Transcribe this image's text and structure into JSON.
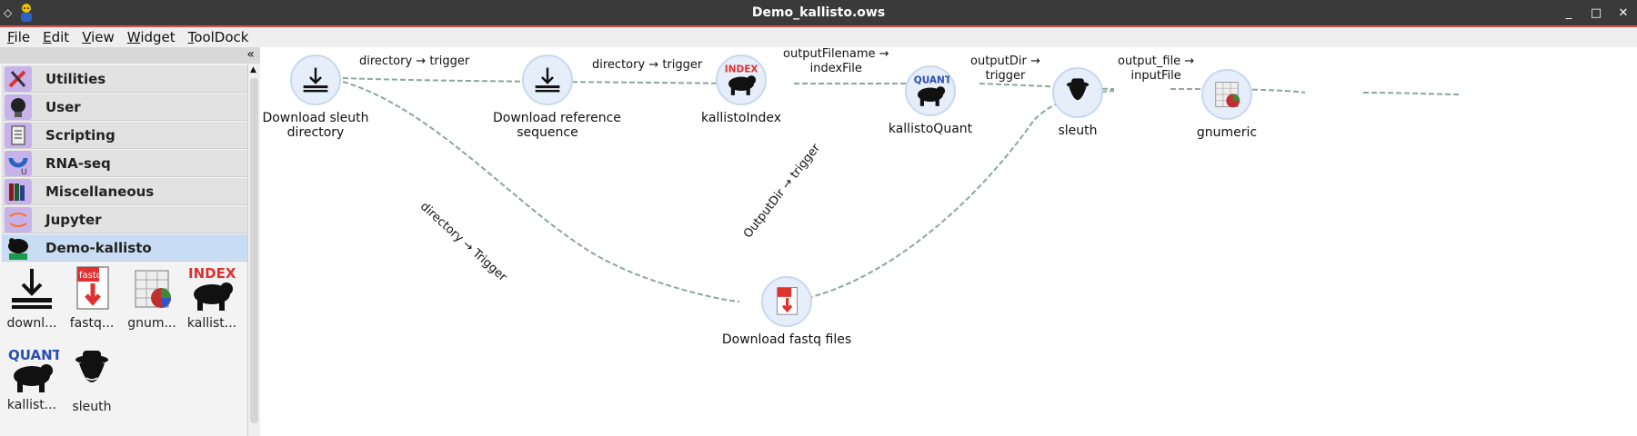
{
  "window": {
    "title": "Demo_kallisto.ows",
    "buttons": [
      "_",
      "□",
      "✕"
    ]
  },
  "menu": [
    "File",
    "Edit",
    "View",
    "Widget",
    "ToolDock"
  ],
  "dock": {
    "collapse_glyph": "«",
    "categories": [
      {
        "label": "Utilities",
        "icon": "wrench-screwdriver-icon",
        "color": "#b89be0"
      },
      {
        "label": "User",
        "icon": "lightbulb-icon",
        "color": "#b89be0"
      },
      {
        "label": "Scripting",
        "icon": "script-icon",
        "color": "#b89be0"
      },
      {
        "label": "RNA-seq",
        "icon": "magnet-icon",
        "color": "#b89be0"
      },
      {
        "label": "Miscellaneous",
        "icon": "books-icon",
        "color": "#b89be0"
      },
      {
        "label": "Jupyter",
        "icon": "jupyter-icon",
        "color": "#b89be0"
      },
      {
        "label": "Demo-kallisto",
        "icon": "bear-demo-icon",
        "color": "#b89be0"
      }
    ],
    "widgets": [
      {
        "label": "downl...",
        "icon": "download-icon"
      },
      {
        "label": "fastq...",
        "icon": "fastq-icon"
      },
      {
        "label": "gnum...",
        "icon": "gnumeric-icon"
      },
      {
        "label": "kallist...",
        "icon": "index-bear-icon"
      },
      {
        "label": "kallist...",
        "icon": "quant-bear-icon"
      },
      {
        "label": "sleuth",
        "icon": "sleuth-icon"
      }
    ]
  },
  "workflow": {
    "nodes": [
      {
        "id": "dl_sleuth",
        "label": "Download sleuth\ndirectory",
        "icon": "download-icon"
      },
      {
        "id": "dl_ref",
        "label": "Download reference\nsequence",
        "icon": "download-icon"
      },
      {
        "id": "kidx",
        "label": "kallistoIndex",
        "icon": "index-bear-icon"
      },
      {
        "id": "kquant",
        "label": "kallistoQuant",
        "icon": "quant-bear-icon"
      },
      {
        "id": "sleuth",
        "label": "sleuth",
        "icon": "sleuth-icon"
      },
      {
        "id": "gnumeric",
        "label": "gnumeric",
        "icon": "gnumeric-icon"
      },
      {
        "id": "fastq",
        "label": "Download fastq files",
        "icon": "fastq-icon"
      }
    ],
    "edges": [
      {
        "label": "directory → trigger"
      },
      {
        "label": "directory → trigger"
      },
      {
        "label": "outputFilename →\nindexFile"
      },
      {
        "label": "outputDir →\ntrigger"
      },
      {
        "label": "output_file →\ninputFile"
      },
      {
        "label": "directory → Trigger"
      },
      {
        "label": "OutputDir → trigger"
      }
    ],
    "colors": {
      "link": "#8aa89a",
      "node_fill": "#e6eefa"
    }
  }
}
